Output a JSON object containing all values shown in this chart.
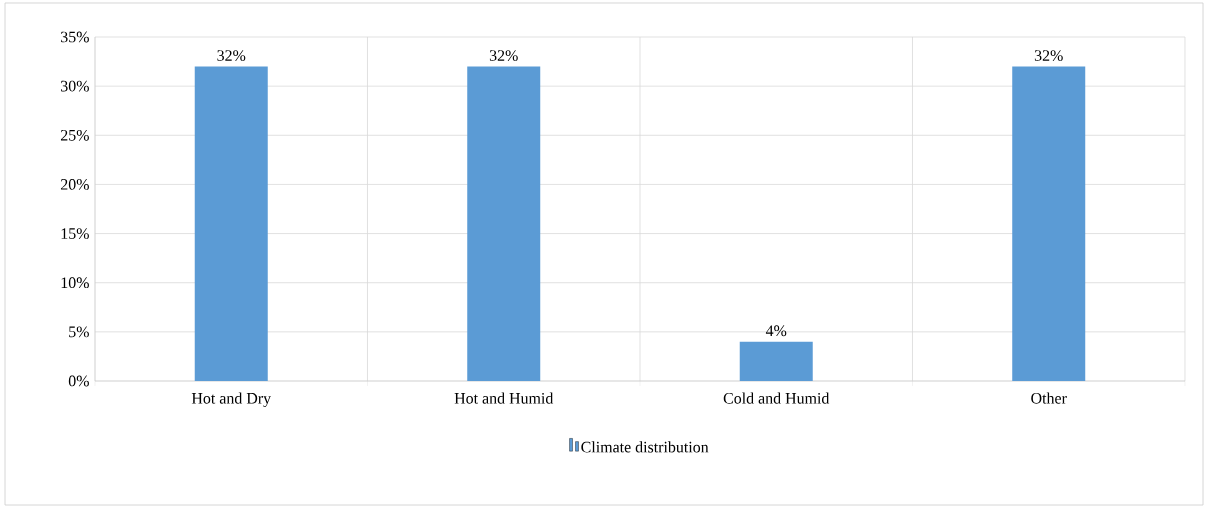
{
  "chart_data": {
    "type": "bar",
    "categories": [
      "Hot and Dry",
      "Hot and Humid",
      "Cold and Humid",
      "Other"
    ],
    "series": [
      {
        "name": "Climate distribution",
        "color": "#5b9bd5",
        "values": [
          32,
          32,
          4,
          32
        ],
        "value_labels": [
          "32%",
          "32%",
          "4%",
          "32%"
        ]
      }
    ],
    "ylim": [
      0,
      35
    ],
    "yticks": [
      {
        "value": 0,
        "label": "0%"
      },
      {
        "value": 5,
        "label": "5%"
      },
      {
        "value": 10,
        "label": "10%"
      },
      {
        "value": 15,
        "label": "15%"
      },
      {
        "value": 20,
        "label": "20%"
      },
      {
        "value": 25,
        "label": "25%"
      },
      {
        "value": 30,
        "label": "30%"
      },
      {
        "value": 35,
        "label": "35%"
      }
    ],
    "grid": true,
    "legend": "bottom"
  }
}
